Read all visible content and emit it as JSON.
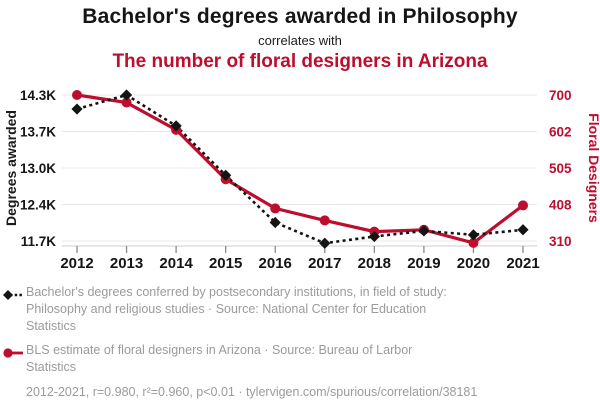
{
  "header": {
    "title": "Bachelor's degrees awarded in Philosophy",
    "connector": "correlates with",
    "subtitle": "The number of floral designers in Arizona"
  },
  "colors": {
    "accent_red": "#bd0e2e",
    "series_black": "#141414",
    "legend_gray": "#9b9b9b",
    "gridline": "#e9e9e9",
    "axis_line": "#cccccc",
    "tick_mark": "#8a8a8a"
  },
  "chart_data": {
    "type": "line",
    "x": [
      2012,
      2013,
      2014,
      2015,
      2016,
      2017,
      2018,
      2019,
      2020,
      2021
    ],
    "series": [
      {
        "name": "Bachelor's degrees awarded in Philosophy",
        "axis": "left",
        "color": "#141414",
        "line_style": "dashed",
        "marker": "diamond",
        "values": [
          14050,
          14300,
          13750,
          12870,
          12030,
          11660,
          11780,
          11880,
          11810,
          11900
        ]
      },
      {
        "name": "Floral designers in Arizona",
        "axis": "right",
        "color": "#bd0e2e",
        "line_style": "solid",
        "marker": "circle",
        "values": [
          700,
          680,
          607,
          475,
          397,
          365,
          335,
          340,
          305,
          405
        ]
      }
    ],
    "left_axis": {
      "label": "Degrees awarded",
      "min": 11700,
      "max": 14300,
      "ticks": [
        14300,
        13650,
        13000,
        12350,
        11700
      ],
      "tick_labels": [
        "14.3K",
        "13.7K",
        "13.0K",
        "12.4K",
        "11.7K"
      ]
    },
    "right_axis": {
      "label": "Floral Designers",
      "min": 310,
      "max": 700,
      "ticks": [
        700,
        602.5,
        505,
        407.5,
        310
      ],
      "tick_labels": [
        "700",
        "602",
        "505",
        "408",
        "310"
      ]
    },
    "grid": true,
    "legend_position": "bottom"
  },
  "legend": {
    "items": [
      {
        "marker": "black-diamond-dashed",
        "text": "Bachelor's degrees conferred by postsecondary institutions, in field of study: Philosophy and religious studies · Source: National Center for Education Statistics"
      },
      {
        "marker": "red-circle-solid",
        "text": "BLS estimate of floral designers in Arizona · Source: Bureau of Larbor Statistics"
      }
    ],
    "footer": "2012-2021, r=0.980, r²=0.960, p<0.01 · tylervigen.com/spurious/correlation/38181"
  }
}
